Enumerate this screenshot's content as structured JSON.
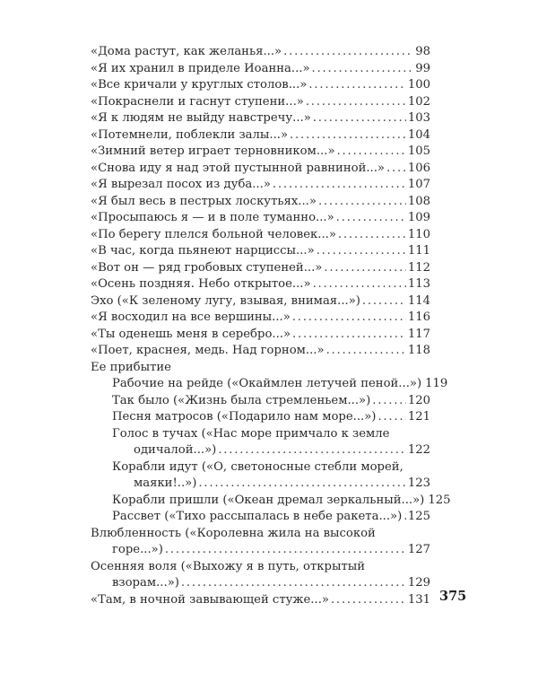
{
  "page_number": "375",
  "entries": [
    {
      "level": 1,
      "title": "«Дома растут, как желанья...»",
      "page": "98"
    },
    {
      "level": 1,
      "title": "«Я их хранил в приделе Иоанна...»",
      "page": "99"
    },
    {
      "level": 1,
      "title": "«Все кричали у круглых столов...»",
      "page": "100"
    },
    {
      "level": 1,
      "title": "«Покраснели и гаснут ступени...»",
      "page": "102"
    },
    {
      "level": 1,
      "title": "«Я к людям не выйду навстречу...»",
      "page": "103"
    },
    {
      "level": 1,
      "title": "«Потемнели, поблекли залы...»",
      "page": "104"
    },
    {
      "level": 1,
      "title": "«Зимний ветер играет терновником...»",
      "page": "105"
    },
    {
      "level": 1,
      "title": "«Снова иду я над этой пустынной равниной...»",
      "page": "106"
    },
    {
      "level": 1,
      "title": "«Я вырезал посох из дуба...»",
      "page": "107"
    },
    {
      "level": 1,
      "title": "«Я был весь в пестрых лоскутьях...»",
      "page": "108"
    },
    {
      "level": 1,
      "title": "«Просыпаюсь я — и в поле туманно...»",
      "page": "109"
    },
    {
      "level": 1,
      "title": "«По берегу плелся больной человек...»",
      "page": "110"
    },
    {
      "level": 1,
      "title": "«В час, когда пьянеют нарциссы...»",
      "page": "111"
    },
    {
      "level": 1,
      "title": "«Вот он — ряд гробовых ступеней...»",
      "page": "112"
    },
    {
      "level": 1,
      "title": "«Осень поздняя. Небо открытое...»",
      "page": "113"
    },
    {
      "level": 1,
      "title": "Эхо («К зеленому лугу, взывая, внимая...»)",
      "page": "114"
    },
    {
      "level": 1,
      "title": "«Я восходил на все вершины...»",
      "page": "116"
    },
    {
      "level": 1,
      "title": "«Ты оденешь меня в серебро...»",
      "page": "117"
    },
    {
      "level": 1,
      "title": "«Поет, краснея, медь. Над горном...»",
      "page": "118"
    },
    {
      "level": 1,
      "title": "Ее прибытие",
      "page": ""
    },
    {
      "level": 2,
      "title": "Рабочие на рейде («Окаймлен летучей пеной...»)",
      "page": "119"
    },
    {
      "level": 2,
      "title": "Так было («Жизнь была стремленьем...»)",
      "page": "120"
    },
    {
      "level": 2,
      "title": "Песня матросов («Подарило нам море...»)",
      "page": "121"
    },
    {
      "level": 2,
      "title": "Голос в тучах («Нас море примчало к земле",
      "continuation": "одичалой...»)",
      "page": "122"
    },
    {
      "level": 2,
      "title": "Корабли идут («О, светоносные стебли морей,",
      "continuation": "маяки!..»)",
      "page": "123"
    },
    {
      "level": 2,
      "title": "Корабли пришли («Океан дремал зеркальный...»)",
      "page": "125"
    },
    {
      "level": 2,
      "title": "Рассвет («Тихо рассыпалась в небе ракета...»)",
      "page": "125"
    },
    {
      "level": 1,
      "title": "Влюбленность («Королевна жила на высокой",
      "continuation": "горе...»)",
      "page": "127"
    },
    {
      "level": 1,
      "title": "Осенняя воля («Выхожу я в путь, открытый",
      "continuation": "взорам...»)",
      "page": "129"
    },
    {
      "level": 1,
      "title": "«Там, в ночной завывающей стуже...»",
      "page": "131"
    }
  ]
}
